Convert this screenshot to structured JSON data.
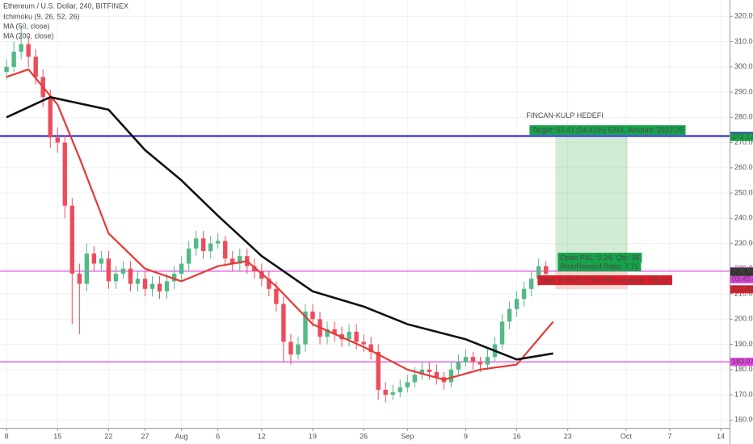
{
  "chart_data": {
    "type": "candlestick",
    "title": "Ethereum / U.S. Dollar, 240, BITFINEX",
    "indicators": [
      "Ichimoku (9, 26, 52, 26)"
    ],
    "up_color": "#53b987",
    "down_color": "#eb4d5c",
    "xlim": [
      -0.9,
      99.2
    ],
    "ylim": [
      156.9,
      326.5
    ],
    "log_scale": false,
    "xticks": [
      {
        "value": 0,
        "label": "8"
      },
      {
        "value": 7,
        "label": "15"
      },
      {
        "value": 14,
        "label": "22"
      },
      {
        "value": 19,
        "label": "27"
      },
      {
        "value": 24,
        "label": "Aug"
      },
      {
        "value": 29,
        "label": "6"
      },
      {
        "value": 35,
        "label": "12"
      },
      {
        "value": 42,
        "label": "19"
      },
      {
        "value": 49,
        "label": "26"
      },
      {
        "value": 55,
        "label": "Sep"
      },
      {
        "value": 63,
        "label": "9"
      },
      {
        "value": 70,
        "label": "16"
      },
      {
        "value": 77,
        "label": "23"
      },
      {
        "value": 85,
        "label": "Oct"
      },
      {
        "value": 91,
        "label": "7"
      },
      {
        "value": 98,
        "label": "14"
      }
    ],
    "yticks": [
      {
        "value": 160,
        "label": "160.00"
      },
      {
        "value": 170,
        "label": "170.00"
      },
      {
        "value": 180,
        "label": "180.00"
      },
      {
        "value": 190,
        "label": "190.00"
      },
      {
        "value": 200,
        "label": "200.00"
      },
      {
        "value": 210,
        "label": "210.00"
      },
      {
        "value": 220,
        "label": "220.00"
      },
      {
        "value": 230,
        "label": "230.00"
      },
      {
        "value": 240,
        "label": "240.00"
      },
      {
        "value": 250,
        "label": "250.00"
      },
      {
        "value": 260,
        "label": "260.00"
      },
      {
        "value": 270,
        "label": "270.00"
      },
      {
        "value": 280,
        "label": "280.00"
      },
      {
        "value": 290,
        "label": "290.00"
      },
      {
        "value": 300,
        "label": "300.00"
      },
      {
        "value": 310,
        "label": "310.00"
      },
      {
        "value": 320,
        "label": "320.00"
      }
    ],
    "grid": true,
    "x": [
      0,
      1,
      2,
      3,
      4,
      5,
      6,
      7,
      8,
      9,
      10,
      11,
      12,
      13,
      14,
      15,
      16,
      17,
      18,
      19,
      20,
      21,
      22,
      23,
      24,
      25,
      26,
      27,
      28,
      29,
      30,
      31,
      32,
      33,
      34,
      35,
      36,
      37,
      38,
      39,
      40,
      41,
      42,
      43,
      44,
      45,
      46,
      47,
      48,
      49,
      50,
      51,
      52,
      53,
      54,
      55,
      56,
      57,
      58,
      59,
      60,
      61,
      62,
      63,
      64,
      65,
      66,
      67,
      68,
      69,
      70,
      71,
      72,
      73,
      74
    ],
    "open": [
      298,
      300,
      306,
      309,
      304,
      296,
      288,
      272,
      270,
      245,
      218,
      214,
      226,
      222,
      224,
      215,
      218,
      220,
      214,
      216,
      212,
      214,
      211,
      215,
      218,
      222,
      228,
      232,
      227,
      230,
      231,
      224,
      222,
      225,
      221,
      219,
      216,
      212,
      206,
      191,
      186,
      190,
      203,
      200,
      193,
      196,
      194,
      192,
      195,
      191,
      190,
      187,
      172,
      170,
      171,
      173,
      175,
      178,
      180,
      179,
      177,
      175,
      180,
      183,
      185,
      183,
      182,
      185,
      190,
      199,
      204,
      208,
      212,
      216,
      221
    ],
    "high": [
      303,
      310,
      316,
      312,
      307,
      299,
      291,
      276,
      273,
      248,
      222,
      230,
      229,
      227,
      227,
      221,
      223,
      223,
      219,
      219,
      217,
      217,
      218,
      221,
      225,
      231,
      235,
      235,
      233,
      234,
      233,
      227,
      228,
      228,
      224,
      222,
      219,
      215,
      209,
      194,
      193,
      206,
      206,
      203,
      199,
      199,
      197,
      198,
      198,
      194,
      193,
      190,
      175,
      174,
      176,
      178,
      181,
      183,
      183,
      182,
      179,
      183,
      186,
      188,
      187,
      185,
      188,
      193,
      202,
      207,
      211,
      215,
      219,
      224,
      223
    ],
    "low": [
      295,
      298,
      303,
      300,
      293,
      284,
      268,
      266,
      240,
      198,
      194,
      211,
      219,
      219,
      212,
      212,
      216,
      211,
      211,
      209,
      209,
      208,
      208,
      212,
      215,
      219,
      225,
      224,
      224,
      228,
      221,
      219,
      219,
      218,
      216,
      213,
      209,
      203,
      183,
      182,
      184,
      187,
      197,
      190,
      190,
      191,
      189,
      189,
      188,
      187,
      184,
      168,
      167,
      168,
      169,
      171,
      173,
      176,
      176,
      174,
      172,
      173,
      178,
      181,
      180,
      179,
      180,
      183,
      188,
      196,
      201,
      205,
      209,
      213,
      216
    ],
    "close": [
      300,
      306,
      309,
      304,
      296,
      288,
      272,
      270,
      245,
      218,
      214,
      226,
      222,
      224,
      215,
      218,
      220,
      214,
      216,
      212,
      214,
      211,
      215,
      218,
      222,
      228,
      232,
      227,
      230,
      231,
      224,
      222,
      225,
      221,
      219,
      216,
      212,
      206,
      191,
      186,
      190,
      203,
      200,
      193,
      196,
      194,
      192,
      195,
      191,
      190,
      187,
      172,
      170,
      171,
      173,
      175,
      178,
      180,
      179,
      177,
      175,
      180,
      183,
      185,
      183,
      182,
      185,
      190,
      199,
      204,
      208,
      212,
      216,
      221,
      218
    ],
    "series": [
      {
        "name": "MA (50, close)",
        "color": "#e53935",
        "x": [
          0,
          3,
          7,
          10,
          14,
          19,
          24,
          29,
          33,
          37,
          42,
          49,
          55,
          60,
          65,
          70,
          75
        ],
        "values": [
          296,
          299,
          285,
          264,
          234,
          220,
          215,
          221,
          223,
          213,
          198,
          189,
          180,
          176,
          180,
          182,
          199
        ]
      },
      {
        "name": "MA (200, close)",
        "color": "#111111",
        "x": [
          0,
          6,
          14,
          19,
          24,
          29,
          35,
          42,
          49,
          55,
          63,
          70,
          75
        ],
        "values": [
          280,
          288,
          283,
          267,
          255,
          241,
          225,
          211,
          205,
          198,
          192,
          184,
          186.4
        ]
      }
    ],
    "hlines": [
      {
        "value": 272.58,
        "color": "#1a1adb"
      },
      {
        "value": 219.0,
        "color": "#e040e0"
      },
      {
        "value": 183.07,
        "color": "#e040e0"
      }
    ],
    "annotation": "FINCAN-KULP HEDEFI",
    "position": {
      "x_start": 75.3,
      "x_end": 85.2,
      "entry": 218.76,
      "target": 272.17,
      "stop": 211.83,
      "target_label": "Target: 53.41 (24.41%) 5341, Amount: 2922.76",
      "pnl_label": "Open P&L: 0.24, Qty: 36",
      "rr_label": "Risk/Reward Ratio: 7.71",
      "stop_label": "Stop: 6.93 (3.17%) 693, Amount: 750.52"
    },
    "price_labels": [
      {
        "value": 272.58,
        "label": "272.58",
        "color": "#1a1adb"
      },
      {
        "value": 272.17,
        "label": "272.17",
        "color": "#16a34a"
      },
      {
        "value": 219.0,
        "label": "219.00",
        "color": "#e040e0"
      },
      {
        "label": "03:45:46",
        "color": "#e040e0"
      },
      {
        "value": 218.72,
        "label": "218.72",
        "color": "#ff5a8a"
      },
      {
        "value": 218.76,
        "label": "218.76",
        "color": "#333333"
      },
      {
        "value": 211.83,
        "label": "211.83",
        "color": "#e11d2a"
      },
      {
        "value": 183.07,
        "label": "183.07",
        "color": "#e040e0"
      }
    ]
  }
}
